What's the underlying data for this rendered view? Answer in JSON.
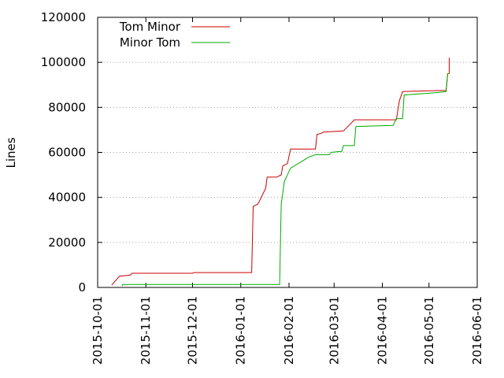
{
  "chart_data": {
    "type": "line",
    "title": "",
    "xlabel": "",
    "ylabel": "Lines",
    "grid": true,
    "legend_position": "top-left",
    "xlim": [
      "2015-10-01",
      "2016-06-01"
    ],
    "ylim": [
      0,
      120000
    ],
    "x_ticks": [
      "2015-10-01",
      "2015-11-01",
      "2015-12-01",
      "2016-01-01",
      "2016-02-01",
      "2016-03-01",
      "2016-04-01",
      "2016-05-01",
      "2016-06-01"
    ],
    "y_ticks": [
      0,
      20000,
      40000,
      60000,
      80000,
      100000,
      120000
    ],
    "series": [
      {
        "name": "Tom Minor",
        "color": "#cc0000",
        "points": [
          [
            "2015-10-10",
            1000
          ],
          [
            "2015-10-15",
            5000
          ],
          [
            "2015-10-22",
            5500
          ],
          [
            "2015-10-23",
            6300
          ],
          [
            "2015-12-01",
            6300
          ],
          [
            "2015-12-02",
            6600
          ],
          [
            "2016-01-08",
            6600
          ],
          [
            "2016-01-09",
            36000
          ],
          [
            "2016-01-12",
            37000
          ],
          [
            "2016-01-17",
            44000
          ],
          [
            "2016-01-18",
            49000
          ],
          [
            "2016-01-24",
            49000
          ],
          [
            "2016-01-27",
            50000
          ],
          [
            "2016-01-28",
            54000
          ],
          [
            "2016-01-31",
            55000
          ],
          [
            "2016-02-02",
            61500
          ],
          [
            "2016-02-18",
            61500
          ],
          [
            "2016-02-19",
            68000
          ],
          [
            "2016-02-22",
            68500
          ],
          [
            "2016-02-23",
            69000
          ],
          [
            "2016-03-07",
            69500
          ],
          [
            "2016-03-12",
            73000
          ],
          [
            "2016-03-14",
            74500
          ],
          [
            "2016-04-10",
            74500
          ],
          [
            "2016-04-12",
            83000
          ],
          [
            "2016-04-14",
            87000
          ],
          [
            "2016-05-09",
            87500
          ],
          [
            "2016-05-12",
            87500
          ],
          [
            "2016-05-13",
            95000
          ],
          [
            "2016-05-14",
            95000
          ],
          [
            "2016-05-14",
            102000
          ]
        ]
      },
      {
        "name": "Minor Tom",
        "color": "#00aa00",
        "points": [
          [
            "2015-10-17",
            600
          ],
          [
            "2015-10-17",
            1300
          ],
          [
            "2016-01-26",
            1300
          ],
          [
            "2016-01-27",
            37000
          ],
          [
            "2016-01-28",
            42000
          ],
          [
            "2016-01-29",
            47000
          ],
          [
            "2016-01-31",
            50000
          ],
          [
            "2016-02-02",
            53000
          ],
          [
            "2016-02-14",
            58000
          ],
          [
            "2016-02-18",
            59000
          ],
          [
            "2016-02-27",
            59000
          ],
          [
            "2016-02-28",
            60000
          ],
          [
            "2016-03-06",
            60500
          ],
          [
            "2016-03-07",
            63000
          ],
          [
            "2016-03-14",
            63000
          ],
          [
            "2016-03-15",
            71500
          ],
          [
            "2016-04-08",
            72000
          ],
          [
            "2016-04-10",
            75000
          ],
          [
            "2016-04-14",
            75000
          ],
          [
            "2016-04-15",
            85500
          ],
          [
            "2016-05-05",
            86500
          ],
          [
            "2016-05-12",
            87000
          ],
          [
            "2016-05-13",
            95000
          ],
          [
            "2016-05-14",
            95000
          ]
        ]
      }
    ]
  }
}
